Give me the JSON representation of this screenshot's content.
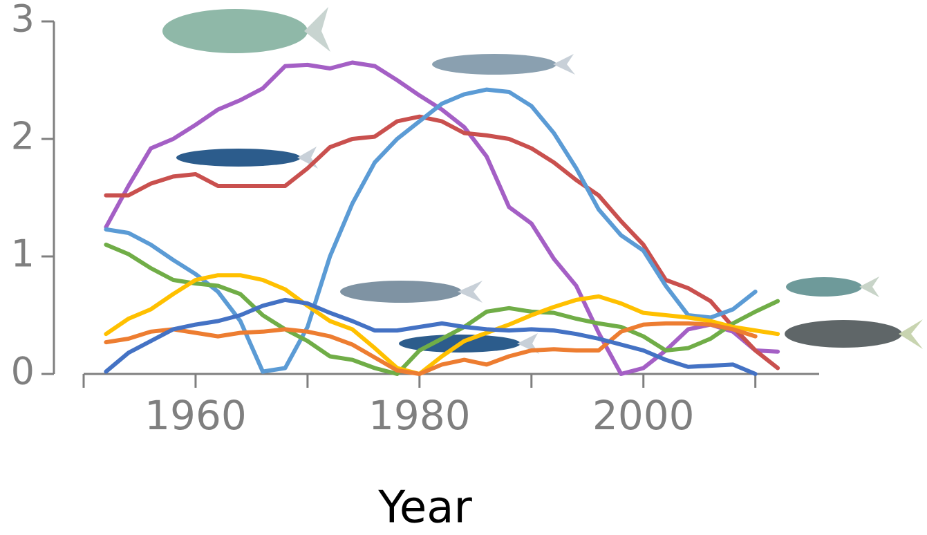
{
  "chart_data": {
    "type": "line",
    "x_label": "Year",
    "x": [
      1952,
      1954,
      1956,
      1958,
      1960,
      1962,
      1964,
      1966,
      1968,
      1970,
      1972,
      1974,
      1976,
      1978,
      1980,
      1982,
      1984,
      1986,
      1988,
      1990,
      1992,
      1994,
      1996,
      1998,
      2000,
      2002,
      2004,
      2006,
      2008,
      2010,
      2012
    ],
    "series": [
      {
        "color": "#a45fc5",
        "values": [
          1.25,
          1.6,
          1.92,
          2.0,
          2.12,
          2.25,
          2.33,
          2.43,
          2.62,
          2.63,
          2.6,
          2.65,
          2.62,
          2.5,
          2.37,
          2.25,
          2.1,
          1.85,
          1.42,
          1.28,
          0.98,
          0.75,
          0.35,
          0.0,
          0.05,
          0.2,
          0.38,
          0.42,
          0.36,
          0.2,
          0.19
        ]
      },
      {
        "color": "#c9504e",
        "values": [
          1.52,
          1.52,
          1.62,
          1.68,
          1.7,
          1.6,
          1.6,
          1.6,
          1.6,
          1.75,
          1.93,
          2.0,
          2.02,
          2.15,
          2.19,
          2.15,
          2.05,
          2.03,
          2.0,
          1.92,
          1.8,
          1.65,
          1.52,
          1.3,
          1.1,
          0.8,
          0.73,
          0.62,
          0.4,
          0.2,
          0.05
        ]
      },
      {
        "color": "#5b9bd5",
        "values": [
          1.23,
          1.2,
          1.1,
          0.97,
          0.85,
          0.7,
          0.45,
          0.02,
          0.05,
          0.4,
          1.0,
          1.45,
          1.8,
          2.0,
          2.15,
          2.3,
          2.38,
          2.42,
          2.4,
          2.28,
          2.05,
          1.75,
          1.4,
          1.18,
          1.05,
          0.75,
          0.5,
          0.48,
          0.55,
          0.7,
          null
        ]
      },
      {
        "color": "#70ad47",
        "values": [
          1.1,
          1.02,
          0.9,
          0.8,
          0.77,
          0.75,
          0.68,
          0.5,
          0.38,
          0.28,
          0.15,
          0.12,
          0.05,
          0.0,
          0.2,
          0.3,
          0.4,
          0.53,
          0.56,
          0.53,
          0.52,
          0.47,
          0.43,
          0.4,
          0.32,
          0.2,
          0.22,
          0.3,
          0.43,
          0.53,
          0.62
        ]
      },
      {
        "color": "#ffc000",
        "values": [
          0.34,
          0.47,
          0.55,
          0.68,
          0.8,
          0.84,
          0.84,
          0.8,
          0.72,
          0.58,
          0.45,
          0.38,
          0.22,
          0.05,
          0.0,
          0.15,
          0.28,
          0.35,
          0.42,
          0.5,
          0.57,
          0.63,
          0.66,
          0.6,
          0.52,
          0.5,
          0.48,
          0.45,
          0.4,
          0.37,
          0.34
        ]
      },
      {
        "color": "#ed7d31",
        "values": [
          0.27,
          0.3,
          0.36,
          0.38,
          0.35,
          0.32,
          0.35,
          0.36,
          0.38,
          0.36,
          0.32,
          0.25,
          0.14,
          0.03,
          0.0,
          0.08,
          0.12,
          0.08,
          0.15,
          0.2,
          0.21,
          0.2,
          0.2,
          0.36,
          0.42,
          0.43,
          0.43,
          0.42,
          0.38,
          0.32,
          null
        ]
      },
      {
        "color": "#4472c4",
        "values": [
          0.02,
          0.18,
          0.28,
          0.38,
          0.42,
          0.45,
          0.5,
          0.58,
          0.63,
          0.6,
          0.52,
          0.45,
          0.37,
          0.37,
          0.4,
          0.43,
          0.4,
          0.38,
          0.37,
          0.38,
          0.37,
          0.34,
          0.3,
          0.25,
          0.2,
          0.12,
          0.06,
          0.07,
          0.08,
          0.0,
          null
        ]
      }
    ],
    "xlim": [
      1950,
      2015.7
    ],
    "xticks": [
      1960,
      1980,
      2000
    ],
    "xminorticks": [
      1950,
      1970,
      1990,
      2010
    ],
    "ylim": [
      0,
      3
    ],
    "yticks": [
      0,
      1,
      2,
      3
    ]
  }
}
